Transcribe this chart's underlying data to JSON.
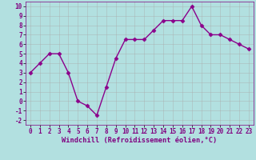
{
  "x": [
    0,
    1,
    2,
    3,
    4,
    5,
    6,
    7,
    8,
    9,
    10,
    11,
    12,
    13,
    14,
    15,
    16,
    17,
    18,
    19,
    20,
    21,
    22,
    23
  ],
  "y": [
    3,
    4,
    5,
    5,
    3,
    0,
    -0.5,
    -1.5,
    1.5,
    4.5,
    6.5,
    6.5,
    6.5,
    7.5,
    8.5,
    8.5,
    8.5,
    10,
    8,
    7,
    7,
    6.5,
    6,
    5.5
  ],
  "line_color": "#8B008B",
  "marker": "D",
  "marker_size": 2.5,
  "bg_color": "#b2e0e0",
  "grid_color": "#aaaaaa",
  "xlabel": "Windchill (Refroidissement éolien,°C)",
  "xlim": [
    -0.5,
    23.5
  ],
  "ylim": [
    -2.5,
    10.5
  ],
  "yticks": [
    -2,
    -1,
    0,
    1,
    2,
    3,
    4,
    5,
    6,
    7,
    8,
    9,
    10
  ],
  "xticks": [
    0,
    1,
    2,
    3,
    4,
    5,
    6,
    7,
    8,
    9,
    10,
    11,
    12,
    13,
    14,
    15,
    16,
    17,
    18,
    19,
    20,
    21,
    22,
    23
  ],
  "tick_fontsize": 5.5,
  "xlabel_fontsize": 6.2,
  "linewidth": 1.0
}
